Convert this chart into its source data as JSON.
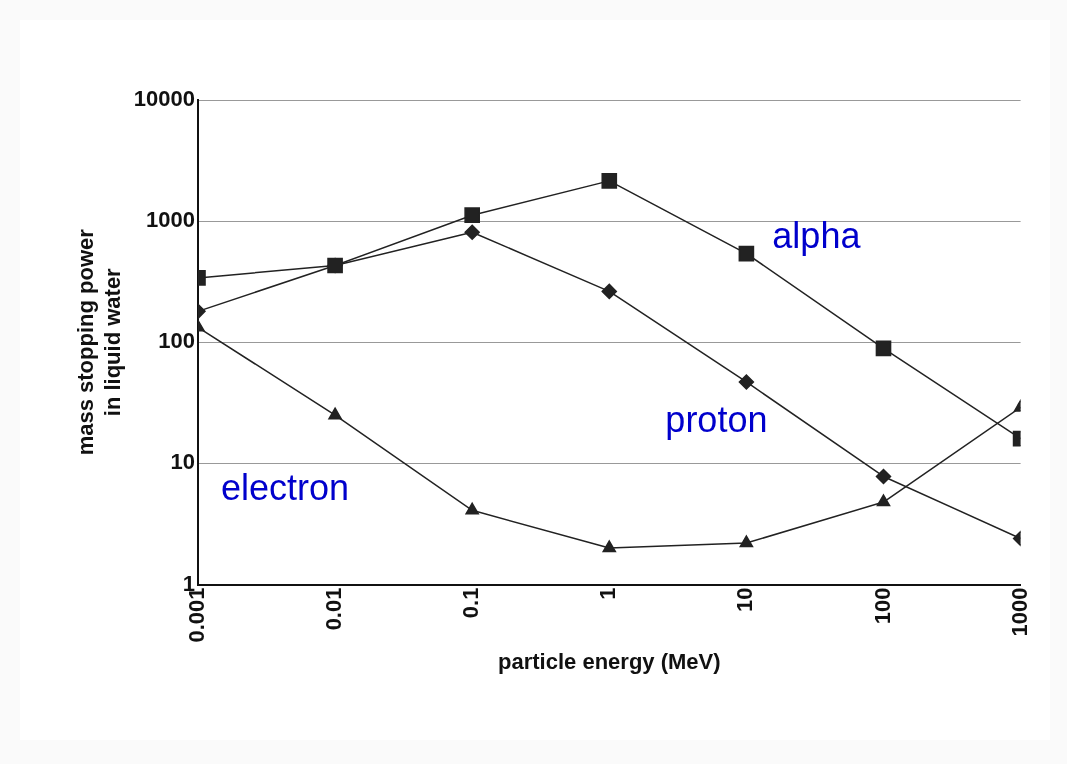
{
  "chart_data": {
    "type": "line",
    "xlabel": "particle energy (MeV)",
    "ylabel": "mass stopping power\nin liquid water",
    "x": [
      0.001,
      0.01,
      0.1,
      1,
      10,
      100,
      1000
    ],
    "series": [
      {
        "name": "alpha",
        "color": "#222222",
        "marker": "square",
        "values": [
          340,
          430,
          1120,
          2150,
          540,
          89,
          16
        ]
      },
      {
        "name": "proton",
        "color": "#222222",
        "marker": "diamond",
        "values": [
          180,
          430,
          810,
          263,
          47,
          7.8,
          2.4
        ]
      },
      {
        "name": "electron",
        "color": "#222222",
        "marker": "triangle",
        "values": [
          133,
          25,
          4.1,
          2,
          2.2,
          4.8,
          29
        ]
      }
    ],
    "log": "xy",
    "xlim": [
      0.001,
      1000
    ],
    "xticks": [
      0.001,
      0.01,
      0.1,
      1,
      10,
      100,
      1000
    ],
    "ylim": [
      1,
      10000
    ],
    "yticks": [
      1,
      10,
      100,
      1000,
      10000
    ],
    "grid": "y",
    "line_style": "solid",
    "legend": false
  }
}
